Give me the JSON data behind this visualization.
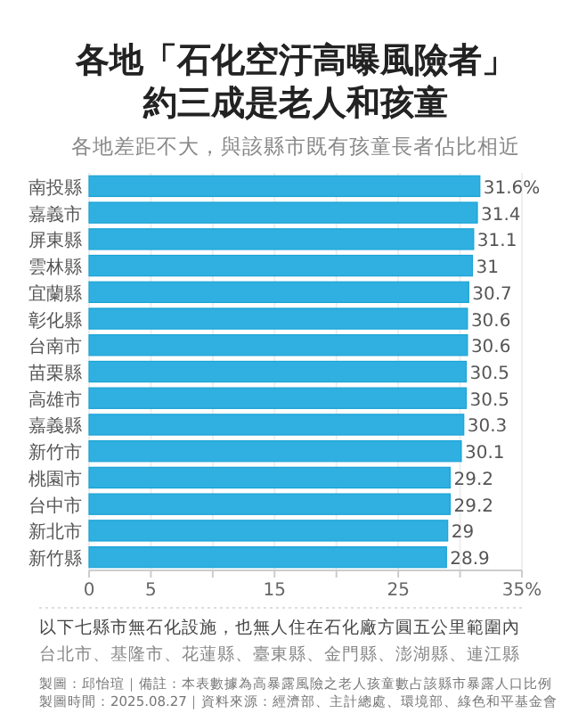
{
  "chart_data": {
    "type": "bar",
    "orientation": "horizontal",
    "title": "各地「石化空汙高曝風險者」約三成是老人和孩童",
    "subtitle": "各地差距不大，與該縣市既有孩童長者佔比相近",
    "categories": [
      "南投縣",
      "嘉義市",
      "屏東縣",
      "雲林縣",
      "宜蘭縣",
      "彰化縣",
      "台南市",
      "苗栗縣",
      "高雄市",
      "嘉義縣",
      "新竹市",
      "桃園市",
      "台中市",
      "新北市",
      "新竹縣"
    ],
    "values": [
      31.6,
      31.4,
      31.1,
      31,
      30.7,
      30.6,
      30.6,
      30.5,
      30.5,
      30.3,
      30.1,
      29.2,
      29.2,
      29,
      28.9
    ],
    "value_labels": [
      "31.6%",
      "31.4",
      "31.1",
      "31",
      "30.7",
      "30.6",
      "30.6",
      "30.5",
      "30.5",
      "30.3",
      "30.1",
      "29.2",
      "29.2",
      "29",
      "28.9"
    ],
    "color": "#2fb0e0",
    "xlim": [
      0,
      35
    ],
    "xticks": [
      0,
      5,
      {
        "value": 10,
        "label": null
      },
      15,
      {
        "value": 20,
        "label": null
      },
      25,
      {
        "value": 30,
        "label": null
      },
      {
        "value": 35,
        "label": "35%"
      }
    ],
    "grid": "x",
    "annotations": [
      "以下七縣市無石化設施，也無人住在石化廠方圓五公里範圍內",
      "台北市、基隆市、花蓮縣、臺東縣、金門縣、澎湖縣、連江縣",
      "製圖：邱怡瑄｜備註：本表數據為高暴露風險之老人孩童數占該縣市暴露人口比例",
      "製圖時間：2025.08.27｜資料來源：經濟部、主計總處、環境部、綠色和平基金會"
    ]
  }
}
